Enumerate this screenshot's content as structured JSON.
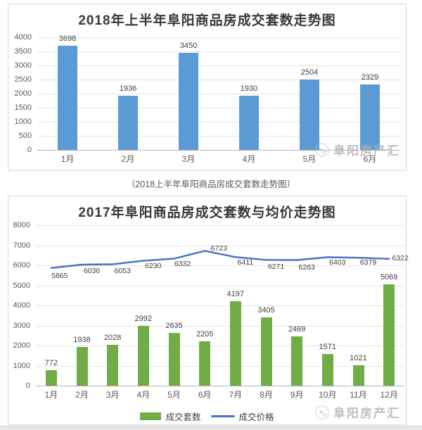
{
  "caption": "（2018上半年阜阳商品房成交套数走势图）",
  "watermark": {
    "text": "阜阳房产汇"
  },
  "chart_data": [
    {
      "type": "bar",
      "title": "2018年上半年阜阳商品房成交套数走势图",
      "categories": [
        "1月",
        "2月",
        "3月",
        "4月",
        "5月",
        "6月"
      ],
      "values": [
        3698,
        1936,
        3450,
        1930,
        2504,
        2329
      ],
      "bar_color": "#5B9BD5",
      "ylim": [
        0,
        4000
      ],
      "yticks": [
        "4000",
        "3500",
        "3000",
        "2500",
        "2000",
        "1500",
        "1000",
        "500",
        "0"
      ],
      "grid": true,
      "legend": "none",
      "xlabel": "",
      "ylabel": ""
    },
    {
      "type": "bar+line",
      "title": "2017年阜阳商品房成交套数与均价走势图",
      "categories": [
        "1月",
        "2月",
        "3月",
        "4月",
        "5月",
        "6月",
        "7月",
        "8月",
        "9月",
        "10月",
        "11月",
        "12月"
      ],
      "series": [
        {
          "name": "成交套数",
          "type": "bar",
          "color": "#70AD47",
          "values": [
            772,
            1938,
            2028,
            2992,
            2635,
            2205,
            4197,
            3405,
            2469,
            1571,
            1021,
            5069
          ]
        },
        {
          "name": "成交价格",
          "type": "line",
          "color": "#4472C4",
          "values": [
            5865,
            6036,
            6053,
            6230,
            6332,
            6723,
            6411,
            6271,
            6263,
            6403,
            6379,
            6322
          ]
        }
      ],
      "ylim": [
        0,
        8000
      ],
      "yticks": [
        "8000",
        "7000",
        "6000",
        "5000",
        "4000",
        "3000",
        "2000",
        "1000",
        "0"
      ],
      "grid": true,
      "legend_position": "bottom",
      "xlabel": "",
      "ylabel": ""
    }
  ]
}
